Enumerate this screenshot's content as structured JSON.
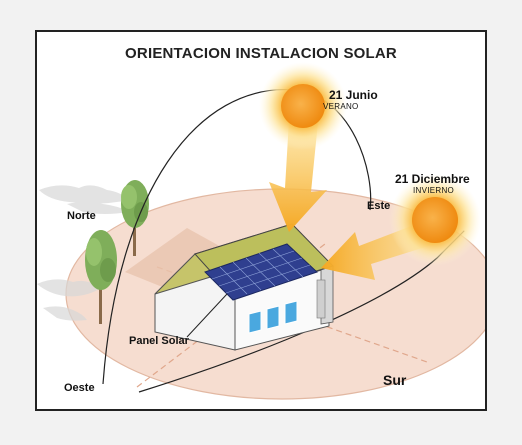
{
  "title": "ORIENTACION INSTALACION SOLAR",
  "summer": {
    "date": "21 Junio",
    "season": "VERANO"
  },
  "winter": {
    "date": "21 Diciembre",
    "season": "INVIERNO"
  },
  "directions": {
    "north": "Norte",
    "east": "Este",
    "west": "Oeste",
    "south": "Sur"
  },
  "panel_label": "Panel Solar",
  "colors": {
    "sun": "#f7b21a",
    "arrow": "#f5b324",
    "ground": "#f3d7c8",
    "panel": "#2f3f8f",
    "window": "#4aa8df"
  }
}
